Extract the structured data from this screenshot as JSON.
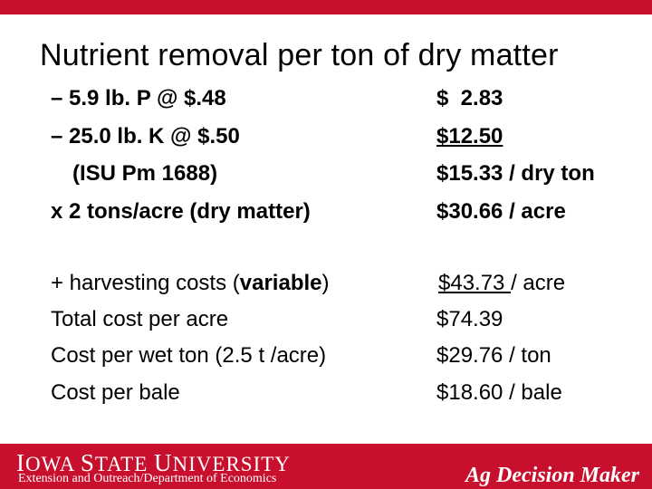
{
  "slide": {
    "title": "Nutrient removal per ton of dry matter",
    "left": {
      "row1": "– 5.9 lb. P @ $.48",
      "row2": "– 25.0 lb. K @ $.50",
      "row3": "(ISU Pm 1688)",
      "row4": "x 2 tons/acre (dry matter)",
      "row5_pre": "+ harvesting costs (",
      "row5_bold": "variable",
      "row5_post": ")",
      "row6": "Total cost per acre",
      "row7": "Cost per wet ton (2.5 t /acre)",
      "row8": "Cost per bale"
    },
    "right": {
      "row1": "$  2.83",
      "row2": "$12.50",
      "row3": "$15.33 / dry ton",
      "row4": "$30.66 / acre",
      "row5_under": "$43.73 ",
      "row5_post": "/ acre",
      "row6": "$74.39",
      "row7": "$29.76 / ton",
      "row8": "$18.60 / bale"
    }
  },
  "footer": {
    "isu_i": "I",
    "isu_owa": "OWA ",
    "isu_s": "S",
    "isu_tate": "TATE ",
    "isu_u": "U",
    "isu_niversity": "NIVERSITY",
    "department": "Extension and Outreach/Department of Economics",
    "brand": "Ag Decision Maker"
  },
  "colors": {
    "accent": "#c8102e"
  }
}
